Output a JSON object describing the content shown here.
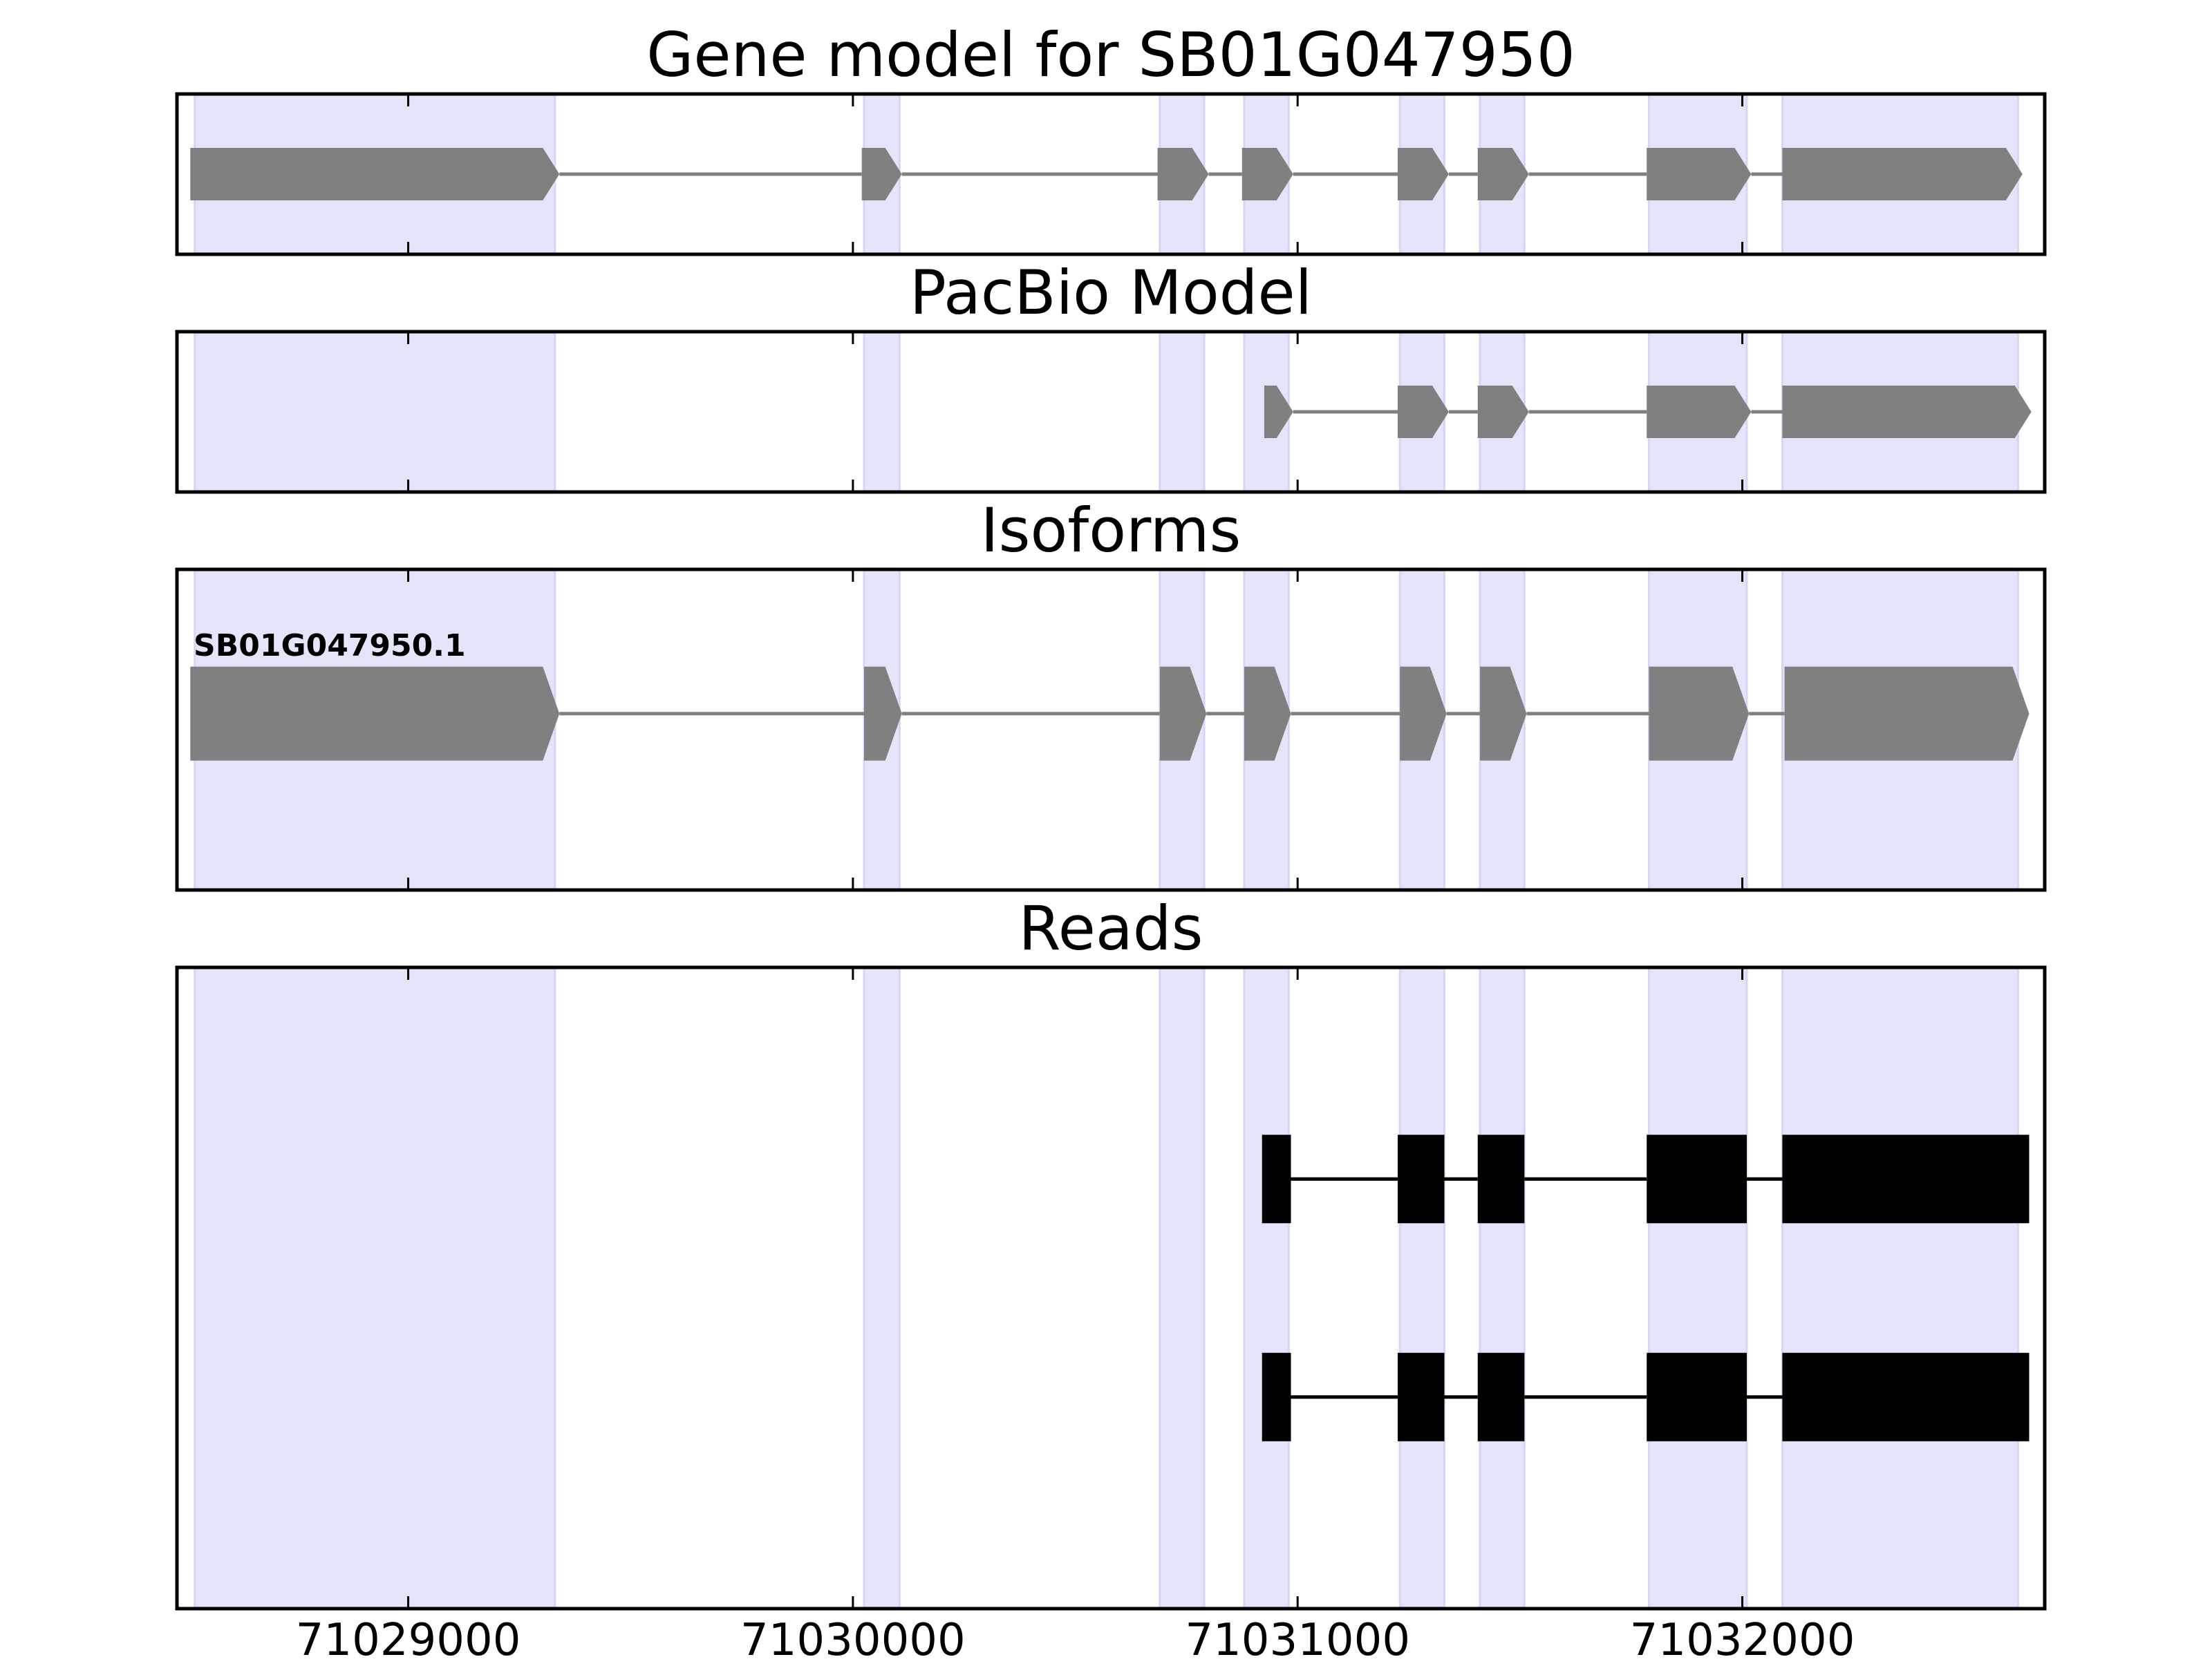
{
  "chart_data": {
    "type": "gene-structure",
    "x_ticks": [
      71029000,
      71030000,
      71031000,
      71032000
    ],
    "x_tick_labels": [
      "71029000",
      "71030000",
      "71031000",
      "71032000"
    ],
    "xlim": [
      71028480,
      71032680
    ],
    "colors": {
      "exon_shading": "#e4e4fb",
      "model_feature": "#808080",
      "read_feature": "#000000",
      "frame": "#000000"
    },
    "shaded_exon_regions": [
      [
        71028520,
        71029330
      ],
      [
        71030025,
        71030105
      ],
      [
        71030690,
        71030790
      ],
      [
        71030880,
        71030980
      ],
      [
        71031230,
        71031330
      ],
      [
        71031410,
        71031510
      ],
      [
        71031790,
        71032010
      ],
      [
        71032090,
        71032620
      ]
    ],
    "panels": [
      {
        "id": "gene_model",
        "title": "Gene model for SB01G047950",
        "tracks": [
          {
            "label": "",
            "row": 0.5,
            "style": "arrow",
            "exons": [
              [
                71028510,
                71029340
              ],
              [
                71030020,
                71030110
              ],
              [
                71030685,
                71030800
              ],
              [
                71030875,
                71030990
              ],
              [
                71031225,
                71031340
              ],
              [
                71031405,
                71031520
              ],
              [
                71031785,
                71032020
              ],
              [
                71032090,
                71032630
              ]
            ]
          }
        ]
      },
      {
        "id": "pacbio_model",
        "title": "PacBio Model",
        "tracks": [
          {
            "label": "",
            "row": 0.5,
            "style": "arrow",
            "exons": [
              [
                71030925,
                71030990
              ],
              [
                71031225,
                71031340
              ],
              [
                71031405,
                71031520
              ],
              [
                71031785,
                71032020
              ],
              [
                71032090,
                71032650
              ]
            ]
          }
        ]
      },
      {
        "id": "isoforms",
        "title": "Isoforms",
        "tracks": [
          {
            "label": "SB01G047950.1",
            "row": 0.45,
            "style": "arrow",
            "exons": [
              [
                71028510,
                71029340
              ],
              [
                71030025,
                71030110
              ],
              [
                71030690,
                71030795
              ],
              [
                71030880,
                71030985
              ],
              [
                71031230,
                71031335
              ],
              [
                71031410,
                71031515
              ],
              [
                71031790,
                71032015
              ],
              [
                71032095,
                71032645
              ]
            ]
          }
        ]
      },
      {
        "id": "reads",
        "title": "Reads",
        "tracks": [
          {
            "label": "",
            "row": 0.33,
            "style": "box",
            "exons": [
              [
                71030920,
                71030985
              ],
              [
                71031225,
                71031330
              ],
              [
                71031405,
                71031510
              ],
              [
                71031785,
                71032010
              ],
              [
                71032090,
                71032645
              ]
            ]
          },
          {
            "label": "",
            "row": 0.67,
            "style": "box",
            "exons": [
              [
                71030920,
                71030985
              ],
              [
                71031225,
                71031330
              ],
              [
                71031405,
                71031510
              ],
              [
                71031785,
                71032010
              ],
              [
                71032090,
                71032645
              ]
            ]
          }
        ]
      }
    ]
  }
}
